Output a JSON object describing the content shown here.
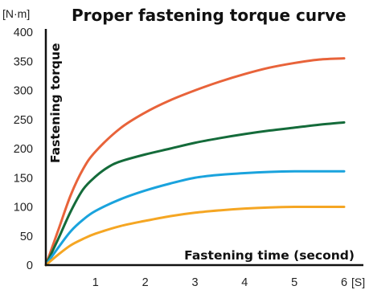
{
  "chart_data": {
    "type": "line",
    "title": "Proper fastening torque curve",
    "y_unit": "[N·m]",
    "x_unit": "[S]",
    "ylabel": "Fastening torque",
    "xlabel": "Fastening time (second)",
    "xlim": [
      0,
      6
    ],
    "ylim": [
      0,
      400
    ],
    "x_ticks": [
      1,
      2,
      3,
      4,
      5,
      6
    ],
    "y_ticks": [
      0,
      50,
      100,
      150,
      200,
      250,
      300,
      350,
      400
    ],
    "grid": false,
    "series": [
      {
        "color": "#e8633a",
        "x": [
          0,
          0.25,
          0.5,
          0.75,
          1,
          1.5,
          2,
          2.5,
          3,
          3.5,
          4,
          4.5,
          5,
          5.5,
          6
        ],
        "values": [
          0,
          60,
          120,
          165,
          195,
          235,
          262,
          283,
          300,
          315,
          328,
          339,
          347,
          353,
          355
        ]
      },
      {
        "color": "#146b3a",
        "x": [
          0,
          0.25,
          0.5,
          0.75,
          1,
          1.25,
          1.5,
          2,
          2.5,
          3,
          3.5,
          4,
          4.5,
          5,
          5.5,
          6
        ],
        "values": [
          0,
          45,
          92,
          130,
          152,
          168,
          178,
          190,
          200,
          210,
          218,
          225,
          231,
          236,
          241,
          245
        ]
      },
      {
        "color": "#1aa3dd",
        "x": [
          0,
          0.25,
          0.5,
          0.75,
          1,
          1.5,
          2,
          2.5,
          3,
          3.5,
          4,
          4.5,
          5,
          5.5,
          6
        ],
        "values": [
          0,
          30,
          58,
          78,
          93,
          113,
          128,
          140,
          150,
          155,
          158,
          160,
          161,
          161,
          161
        ]
      },
      {
        "color": "#f5a623",
        "x": [
          0,
          0.25,
          0.5,
          0.75,
          1,
          1.5,
          2,
          2.5,
          3,
          3.5,
          4,
          4.5,
          5,
          5.5,
          6
        ],
        "values": [
          0,
          18,
          34,
          45,
          54,
          67,
          76,
          84,
          90,
          94,
          97,
          99,
          100,
          100,
          100
        ]
      }
    ]
  }
}
